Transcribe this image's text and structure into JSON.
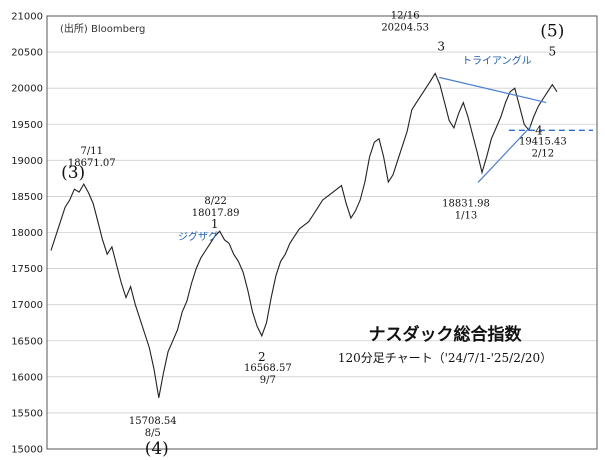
{
  "chart_data": {
    "type": "line",
    "title": "ナスダック総合指数",
    "subtitle": "120分足チャート（'24/7/1-'25/2/20）",
    "source": "(出所) Bloomberg",
    "xlabel": "",
    "ylabel": "",
    "ylim": [
      15000,
      21000
    ],
    "yticks": [
      15000,
      15500,
      16000,
      16500,
      17000,
      17500,
      18000,
      18500,
      19000,
      19500,
      20000,
      20500,
      21000
    ],
    "grid": true,
    "series": [
      {
        "values": [
          17750,
          17950,
          18150,
          18350,
          18450,
          18600,
          18560,
          18671,
          18550,
          18400,
          18150,
          17900,
          17700,
          17800,
          17550,
          17300,
          17100,
          17250,
          17000,
          16800,
          16600,
          16400,
          16100,
          15709,
          16050,
          16350,
          16500,
          16650,
          16900,
          17050,
          17300,
          17500,
          17650,
          17750,
          17850,
          17950,
          18018,
          17900,
          17850,
          17700,
          17600,
          17450,
          17200,
          16900,
          16700,
          16569,
          16750,
          17100,
          17400,
          17600,
          17700,
          17850,
          17950,
          18050,
          18100,
          18150,
          18250,
          18350,
          18450,
          18500,
          18550,
          18600,
          18650,
          18400,
          18200,
          18300,
          18450,
          18700,
          19050,
          19250,
          19300,
          19050,
          18700,
          18800,
          19000,
          19200,
          19400,
          19700,
          19800,
          19900,
          20000,
          20100,
          20205,
          20050,
          19800,
          19550,
          19450,
          19650,
          19800,
          19600,
          19350,
          19100,
          18832,
          19050,
          19300,
          19450,
          19600,
          19800,
          19950,
          20000,
          19750,
          19500,
          19416,
          19600,
          19750,
          19850,
          19950,
          20050,
          19950
        ]
      }
    ],
    "annotations": [
      {
        "id": "a-0711",
        "text": "7/11",
        "idx": 7
      },
      {
        "id": "a-0711v",
        "text": "18671.07",
        "idx": 7
      },
      {
        "id": "a-0805v",
        "text": "15708.54",
        "idx": 23
      },
      {
        "id": "a-0805",
        "text": "8/5",
        "idx": 23
      },
      {
        "id": "a-0822",
        "text": "8/22",
        "idx": 36
      },
      {
        "id": "a-0822v",
        "text": "18017.89",
        "idx": 36
      },
      {
        "id": "a-0907v",
        "text": "16568.57",
        "idx": 45
      },
      {
        "id": "a-0907",
        "text": "9/7",
        "idx": 45
      },
      {
        "id": "a-1216",
        "text": "12/16",
        "idx": 82
      },
      {
        "id": "a-1216v",
        "text": "20204.53",
        "idx": 82
      },
      {
        "id": "a-0113v",
        "text": "18831.98",
        "idx": 92
      },
      {
        "id": "a-0113",
        "text": "1/13",
        "idx": 92
      },
      {
        "id": "a-0212v",
        "text": "19415.43",
        "idx": 102
      },
      {
        "id": "a-0212",
        "text": "2/12",
        "idx": 102
      }
    ],
    "wave_labels": [
      {
        "text": "(3)",
        "idx": 6
      },
      {
        "text": "(4)",
        "idx": 23
      },
      {
        "text": "1",
        "idx": 36
      },
      {
        "text": "2",
        "idx": 45
      },
      {
        "text": "3",
        "idx": 82
      },
      {
        "text": "4",
        "idx": 102
      },
      {
        "text": "(5)",
        "idx": 107
      },
      {
        "text": "5",
        "idx": 107
      }
    ],
    "pattern_labels": {
      "zigzag": "ジグザグ",
      "triangle": "トライアングル"
    },
    "reference_line": {
      "y": 19416,
      "style": "dashed",
      "color": "#2a6fcf"
    },
    "line_color": "#222222",
    "trendline_color": "#4a7fcf"
  }
}
